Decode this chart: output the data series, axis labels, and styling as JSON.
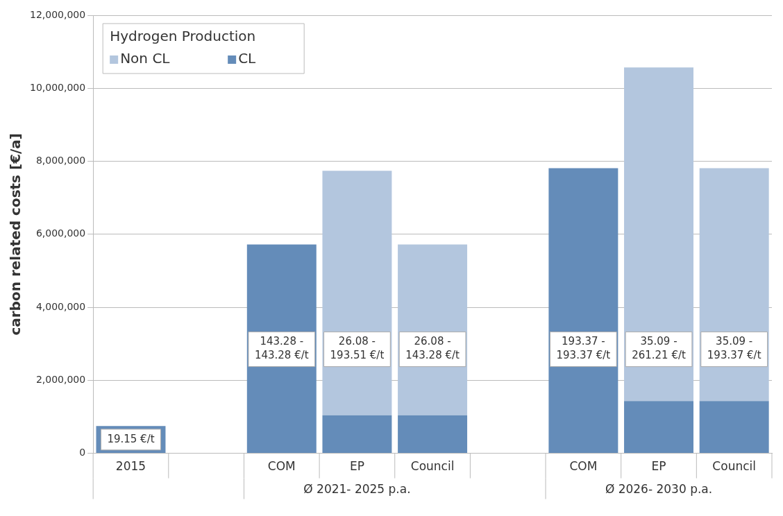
{
  "chart_data": {
    "type": "bar",
    "stacked": true,
    "ylabel": "carbon related costs [€/a]",
    "legend_title": "Hydrogen Production",
    "legend": "top left",
    "grid": "y",
    "categories": [
      "2015",
      null,
      "COM",
      "EP",
      "Council",
      null,
      "COM",
      "EP",
      "Council"
    ],
    "series": [
      {
        "name": "CL",
        "color": "#648cb9",
        "values": [
          750000,
          null,
          5720000,
          1040000,
          1040000,
          null,
          7810000,
          1430000,
          1430000
        ]
      },
      {
        "name": "Non CL",
        "color": "#b3c6de",
        "values": [
          null,
          null,
          null,
          6700000,
          4680000,
          null,
          null,
          9140000,
          6380000
        ]
      }
    ],
    "ylim": [
      0,
      12000000
    ],
    "yticks": [
      0,
      {
        "value": 2000000,
        "label": "2,000,000"
      },
      {
        "value": 4000000,
        "label": "4,000,000"
      },
      {
        "value": 6000000,
        "label": "6,000,000"
      },
      {
        "value": 8000000,
        "label": "8,000,000"
      },
      {
        "value": 10000000,
        "label": "10,000,000"
      },
      {
        "value": 12000000,
        "label": "12,000,000"
      }
    ],
    "annotations": [
      "19.15 €/t",
      "143.28 - 143.28 €/t",
      "26.08 - 193.51 €/t",
      "26.08 - 143.28 €/t",
      "193.37 - 193.37 €/t",
      "35.09 - 261.21 €/t",
      "35.09 - 193.37 €/t",
      "Ø 2021- 2025 p.a.",
      "Ø 2026- 2030 p.a."
    ]
  }
}
